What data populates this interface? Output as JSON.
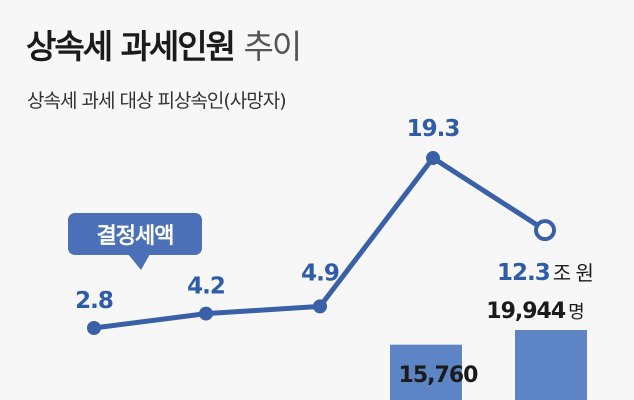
{
  "header": {
    "title_main": "상속세 과세인원",
    "title_light": "추이",
    "subtitle": "상속세 과세 대상 피상속인(사망자)"
  },
  "colors": {
    "line": "#3a60a8",
    "bar": "#5d84c5",
    "label": "#2e5cab",
    "tag_bg": "#4b70b8",
    "text": "#1b1b1b"
  },
  "chart_data": [
    {
      "type": "line",
      "series": [
        {
          "name": "결정세액",
          "values": [
            2.8,
            4.2,
            4.9,
            19.3,
            12.3
          ],
          "labels": [
            "2.8",
            "4.2",
            "4.9",
            "19.3",
            "12.3"
          ],
          "unit": "조 원",
          "last_point_open": true
        }
      ]
    },
    {
      "type": "bar",
      "values": [
        15760,
        19944
      ],
      "labels": [
        "15,760",
        "19,944"
      ],
      "unit": "명"
    }
  ]
}
